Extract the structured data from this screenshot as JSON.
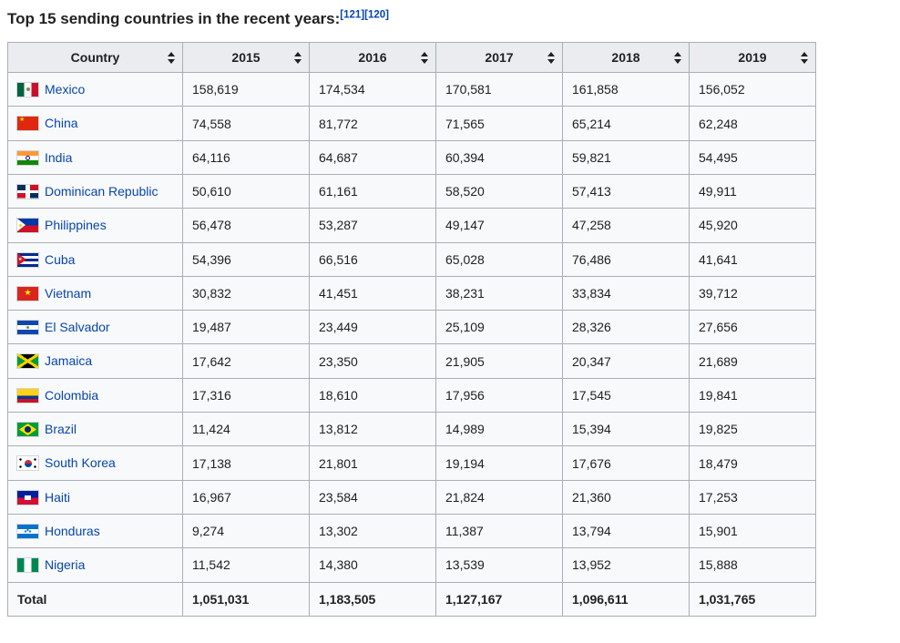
{
  "page": {
    "title": "Top 15 sending countries in the recent years:",
    "citations": [
      "[121]",
      "[120]"
    ]
  },
  "colors": {
    "link": "#0645ad",
    "header_bg": "#eaecf0",
    "row_bg": "#f8f9fa",
    "border": "#a9afb6",
    "text": "#202122"
  },
  "table": {
    "columns": [
      "Country",
      "2015",
      "2016",
      "2017",
      "2018",
      "2019"
    ],
    "sort_icon": "sort-both-icon",
    "rows": [
      {
        "country": "Mexico",
        "flag": "mexico",
        "values": [
          "158,619",
          "174,534",
          "170,581",
          "161,858",
          "156,052"
        ]
      },
      {
        "country": "China",
        "flag": "china",
        "values": [
          "74,558",
          "81,772",
          "71,565",
          "65,214",
          "62,248"
        ]
      },
      {
        "country": "India",
        "flag": "india",
        "values": [
          "64,116",
          "64,687",
          "60,394",
          "59,821",
          "54,495"
        ]
      },
      {
        "country": "Dominican Republic",
        "flag": "dominican-republic",
        "values": [
          "50,610",
          "61,161",
          "58,520",
          "57,413",
          "49,911"
        ]
      },
      {
        "country": "Philippines",
        "flag": "philippines",
        "values": [
          "56,478",
          "53,287",
          "49,147",
          "47,258",
          "45,920"
        ]
      },
      {
        "country": "Cuba",
        "flag": "cuba",
        "values": [
          "54,396",
          "66,516",
          "65,028",
          "76,486",
          "41,641"
        ]
      },
      {
        "country": "Vietnam",
        "flag": "vietnam",
        "values": [
          "30,832",
          "41,451",
          "38,231",
          "33,834",
          "39,712"
        ]
      },
      {
        "country": "El Salvador",
        "flag": "el-salvador",
        "values": [
          "19,487",
          "23,449",
          "25,109",
          "28,326",
          "27,656"
        ]
      },
      {
        "country": "Jamaica",
        "flag": "jamaica",
        "values": [
          "17,642",
          "23,350",
          "21,905",
          "20,347",
          "21,689"
        ]
      },
      {
        "country": "Colombia",
        "flag": "colombia",
        "values": [
          "17,316",
          "18,610",
          "17,956",
          "17,545",
          "19,841"
        ]
      },
      {
        "country": "Brazil",
        "flag": "brazil",
        "values": [
          "11,424",
          "13,812",
          "14,989",
          "15,394",
          "19,825"
        ]
      },
      {
        "country": "South Korea",
        "flag": "south-korea",
        "values": [
          "17,138",
          "21,801",
          "19,194",
          "17,676",
          "18,479"
        ]
      },
      {
        "country": "Haiti",
        "flag": "haiti",
        "values": [
          "16,967",
          "23,584",
          "21,824",
          "21,360",
          "17,253"
        ]
      },
      {
        "country": "Honduras",
        "flag": "honduras",
        "values": [
          "9,274",
          "13,302",
          "11,387",
          "13,794",
          "15,901"
        ]
      },
      {
        "country": "Nigeria",
        "flag": "nigeria",
        "values": [
          "11,542",
          "14,380",
          "13,539",
          "13,952",
          "15,888"
        ]
      }
    ],
    "total": {
      "label": "Total",
      "values": [
        "1,051,031",
        "1,183,505",
        "1,127,167",
        "1,096,611",
        "1,031,765"
      ]
    }
  }
}
